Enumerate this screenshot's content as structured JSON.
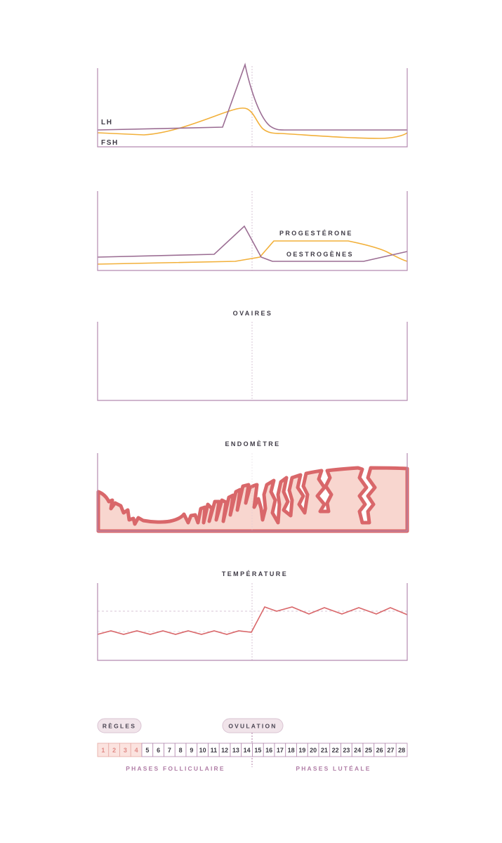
{
  "charts": {
    "gonadotropins": {
      "lh_label": "LH",
      "fsh_label": "FSH"
    },
    "ovarian_hormones": {
      "progesterone_label": "PROGESTÉRONE",
      "estrogen_label": "OESTROGÈNES"
    },
    "ovaries": {
      "title": "OVAIRES"
    },
    "endometrium": {
      "title": "ENDOMÈTRE"
    },
    "temperature": {
      "title": "TEMPÉRATURE"
    }
  },
  "timeline": {
    "menses_pill": "RÈGLES",
    "ovulation_pill": "OVULATION",
    "days": [
      "1",
      "2",
      "3",
      "4",
      "5",
      "6",
      "7",
      "8",
      "9",
      "10",
      "11",
      "12",
      "13",
      "14",
      "15",
      "16",
      "17",
      "18",
      "19",
      "20",
      "21",
      "22",
      "23",
      "24",
      "25",
      "26",
      "27",
      "28"
    ],
    "menses_days": 4,
    "ovulation_day": 14,
    "follicular_label": "PHASES FOLLICULAIRE",
    "luteal_label": "PHASES LUTÉALE"
  },
  "colors": {
    "axis": "#b48ab0",
    "purple_line": "#9b6d93",
    "orange_line": "#f2b03a",
    "pink": "#d9676a",
    "pink_fill": "#f8d6cf",
    "dotted": "#c9b7c8",
    "pill_bg": "#f1e4ea",
    "menses_cell": "#fbe3df"
  }
}
